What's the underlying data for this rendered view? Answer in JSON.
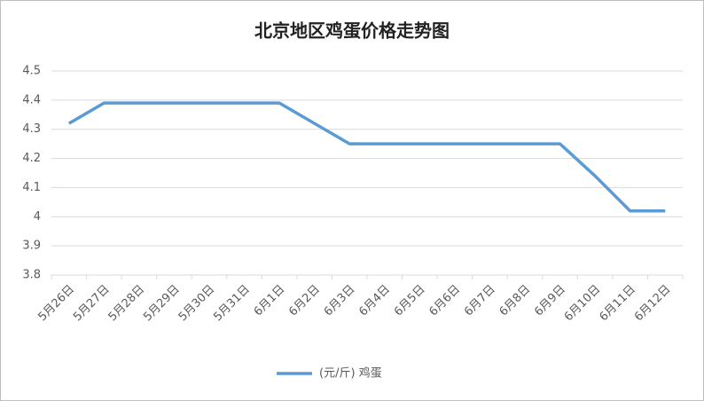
{
  "chart_data": {
    "type": "line",
    "title": "北京地区鸡蛋价格走势图",
    "categories": [
      "5月26日",
      "5月27日",
      "5月28日",
      "5月29日",
      "5月30日",
      "5月31日",
      "6月1日",
      "6月2日",
      "6月3日",
      "6月4日",
      "6月5日",
      "6月6日",
      "6月7日",
      "6月8日",
      "6月9日",
      "6月10日",
      "6月11日",
      "6月12日"
    ],
    "series": [
      {
        "name": "(元/斤) 鸡蛋",
        "color": "#5b9bd5",
        "values": [
          4.32,
          4.39,
          4.39,
          4.39,
          4.39,
          4.39,
          4.39,
          4.32,
          4.25,
          4.25,
          4.25,
          4.25,
          4.25,
          4.25,
          4.25,
          4.14,
          4.02,
          4.02
        ]
      }
    ],
    "ylim": [
      3.8,
      4.5
    ],
    "yticks": [
      3.8,
      3.9,
      4,
      4.1,
      4.2,
      4.3,
      4.4,
      4.5
    ],
    "grid": true,
    "legend": "bottom"
  }
}
